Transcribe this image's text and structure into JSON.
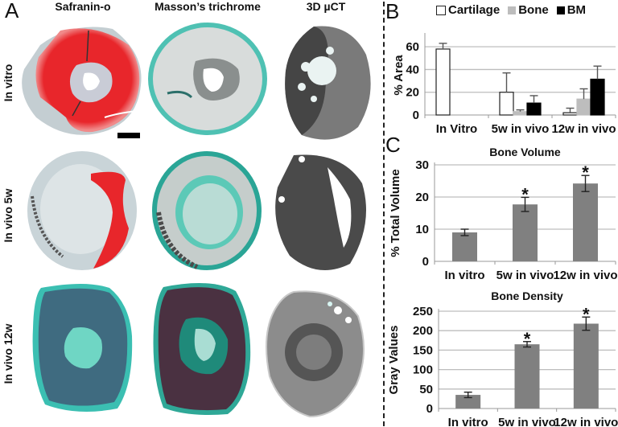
{
  "panelA": {
    "letter": "A",
    "columns": [
      "Safranin-o",
      "Masson’s trichrome",
      "3D µCT"
    ],
    "rows": [
      "In vitro",
      "In vivo 5w",
      "In vivo 12w"
    ],
    "colors": {
      "safranin_red": "#e8262b",
      "tissue_blue_gray": "#b9c6cc",
      "fast_green": "#3bbfae",
      "dark_teal": "#1e7f78",
      "purple_marrow": "#4a3040",
      "ct_gray": "#6e6e6e",
      "ct_dark": "#3f3f3f"
    }
  },
  "chart_data": [
    {
      "id": "B",
      "panel_letter": "B",
      "type": "bar",
      "title": "",
      "ylabel": "% Area",
      "xlabel": "",
      "categories": [
        "In Vitro",
        "5w in vivo",
        "12w in vivo"
      ],
      "ylim": [
        0,
        70
      ],
      "yticks": [
        0,
        20,
        40,
        60
      ],
      "grid": true,
      "legend": "top",
      "series": [
        {
          "name": "Cartilage",
          "color": "#ffffff",
          "stroke": "#222222",
          "values": [
            58,
            20,
            2
          ],
          "errors": [
            5,
            17,
            4
          ]
        },
        {
          "name": "Bone",
          "color": "#bdbdbd",
          "stroke": "#bdbdbd",
          "values": [
            0,
            3,
            14
          ],
          "errors": [
            0,
            1.5,
            9
          ]
        },
        {
          "name": "BM",
          "color": "#000000",
          "stroke": "#000000",
          "values": [
            0,
            10.5,
            31.5
          ],
          "errors": [
            0,
            6.5,
            11.5
          ]
        }
      ]
    },
    {
      "id": "C1",
      "panel_letter": "C",
      "type": "bar",
      "title": "Bone Volume",
      "ylabel": "% Total Volume",
      "xlabel": "",
      "categories": [
        "In vitro",
        "5w in vivo",
        "12w in vivo"
      ],
      "ylim": [
        0,
        30
      ],
      "yticks": [
        0,
        10,
        20,
        30
      ],
      "grid": true,
      "legend": "none",
      "bar_color": "#808080",
      "values": [
        9,
        17.7,
        24.2
      ],
      "errors": [
        1,
        2.2,
        2.5
      ],
      "significance": [
        "",
        "*",
        "*"
      ]
    },
    {
      "id": "C2",
      "panel_letter": "",
      "type": "bar",
      "title": "Bone Density",
      "ylabel": "Gray Values",
      "xlabel": "",
      "categories": [
        "In vitro",
        "5w in vivo",
        "12w in vivo"
      ],
      "ylim": [
        0,
        250
      ],
      "yticks": [
        0,
        50,
        100,
        150,
        200,
        250
      ],
      "grid": true,
      "legend": "none",
      "bar_color": "#808080",
      "values": [
        35,
        165,
        218
      ],
      "errors": [
        7,
        7,
        17
      ],
      "significance": [
        "",
        "*",
        "*"
      ]
    }
  ]
}
